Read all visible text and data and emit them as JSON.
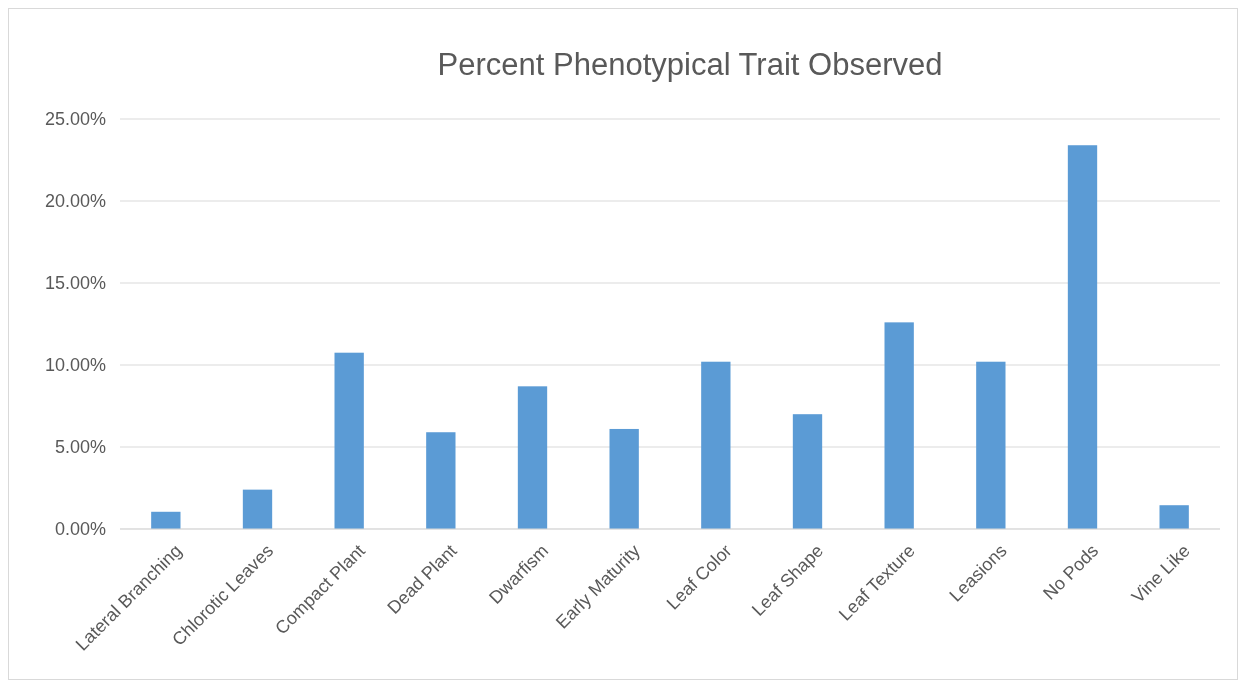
{
  "chart_data": {
    "type": "bar",
    "title": "Percent Phenotypical Trait Observed",
    "categories": [
      "Lateral Branching",
      "Chlorotic Leaves",
      "Compact Plant",
      "Dead Plant",
      "Dwarfism",
      "Early Maturity",
      "Leaf Color",
      "Leaf Shape",
      "Leaf Texture",
      "Leasions",
      "No Pods",
      "Vine Like"
    ],
    "values": [
      1.05,
      2.4,
      10.75,
      5.9,
      8.7,
      6.1,
      10.2,
      7.0,
      12.6,
      10.2,
      23.4,
      1.45
    ],
    "color": "#5b9bd5",
    "ylim": [
      0,
      25
    ],
    "yticks": [
      {
        "value": 0,
        "label": "0.00%"
      },
      {
        "value": 5,
        "label": "5.00%"
      },
      {
        "value": 10,
        "label": "10.00%"
      },
      {
        "value": 15,
        "label": "15.00%"
      },
      {
        "value": 20,
        "label": "20.00%"
      },
      {
        "value": 25,
        "label": "25.00%"
      }
    ],
    "grid": "y"
  }
}
